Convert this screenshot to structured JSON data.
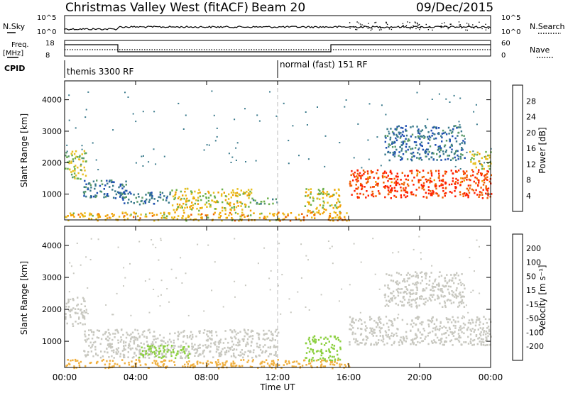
{
  "header": {
    "radar": "Christmas Valley West (fitACF)",
    "beam": "Beam 20",
    "date": "09/Dec/2015"
  },
  "noise_panel": {
    "left_label": "N.Sky",
    "right_label": "N.Search",
    "left_ticks": [
      "10^5",
      "10^0"
    ],
    "right_ticks": [
      "10^5",
      "10^0"
    ],
    "scale": "log"
  },
  "freq_panel": {
    "left_label_1": "Freq.",
    "left_label_2": "[MHz]",
    "right_label": "Nave",
    "left_ticks": [
      "18",
      "8"
    ],
    "right_ticks": [
      "60",
      "0"
    ]
  },
  "cpid": {
    "label": "CPID",
    "segments": [
      {
        "name": "themis 3300 RF",
        "start_hour": 0,
        "end_hour": 12
      },
      {
        "name": "normal (fast) 151 RF",
        "start_hour": 12,
        "end_hour": 24
      }
    ]
  },
  "chart_data": [
    {
      "type": "heatmap",
      "name": "power",
      "ylabel": "Slant Range [km]",
      "xlabel": "Time UT",
      "ylim": [
        180,
        4600
      ],
      "xlim": [
        0,
        24
      ],
      "yticks": [
        "1000",
        "2000",
        "3000",
        "4000"
      ],
      "xticks": [
        "00:00",
        "04:00",
        "08:00",
        "12:00",
        "16:00",
        "20:00",
        "00:00"
      ],
      "colorbar": {
        "label": "Power [dB]",
        "ticks": [
          "28",
          "24",
          "20",
          "16",
          "12",
          "8",
          "4"
        ],
        "range": [
          0,
          30
        ],
        "colors": [
          "#0000ff",
          "#2050b0",
          "#3a7a8c",
          "#5a9a6a",
          "#6cb04a",
          "#e8c020",
          "#f0a000",
          "#f06000",
          "#ff2000"
        ]
      },
      "regions": [
        {
          "t0": 0.0,
          "t1": 1.2,
          "r0": 1500,
          "r1": 2400,
          "level": 16
        },
        {
          "t0": 1.0,
          "t1": 3.5,
          "r0": 900,
          "r1": 1500,
          "level": 8
        },
        {
          "t0": 3.0,
          "t1": 6.0,
          "r0": 700,
          "r1": 1100,
          "level": 8
        },
        {
          "t0": 6.0,
          "t1": 10.5,
          "r0": 500,
          "r1": 1200,
          "level": 18
        },
        {
          "t0": 10.5,
          "t1": 12.0,
          "r0": 700,
          "r1": 900,
          "level": 12
        },
        {
          "t0": 0.0,
          "t1": 12.0,
          "r0": 180,
          "r1": 450,
          "level": 20
        },
        {
          "t0": 13.5,
          "t1": 15.5,
          "r0": 400,
          "r1": 1200,
          "level": 18
        },
        {
          "t0": 16.0,
          "t1": 24.0,
          "r0": 900,
          "r1": 1800,
          "level": 27
        },
        {
          "t0": 22.8,
          "t1": 24.0,
          "r0": 1800,
          "r1": 2400,
          "level": 18
        },
        {
          "t0": 18.0,
          "t1": 22.5,
          "r0": 2100,
          "r1": 3200,
          "level": 8
        },
        {
          "t0": 12.0,
          "t1": 16.0,
          "r0": 180,
          "r1": 450,
          "level": 22
        }
      ]
    },
    {
      "type": "heatmap",
      "name": "velocity",
      "ylabel": "Slant Range [km]",
      "xlabel": "Time UT",
      "ylim": [
        180,
        4600
      ],
      "xlim": [
        0,
        24
      ],
      "yticks": [
        "1000",
        "2000",
        "3000",
        "4000"
      ],
      "xticks": [
        "00:00",
        "04:00",
        "08:00",
        "12:00",
        "16:00",
        "20:00",
        "00:00"
      ],
      "colorbar": {
        "label": "Velocity [m s⁻¹]",
        "ticks": [
          "200",
          "100",
          "50",
          "15",
          "-15",
          "-50",
          "-100",
          "-200"
        ],
        "colors": [
          "#1a3aa0",
          "#2a6a80",
          "#3a9a40",
          "#8cd040",
          "#c8c8c0",
          "#f0b040",
          "#f08020",
          "#f04010",
          "#e00000"
        ]
      },
      "regions": [
        {
          "t0": 0.0,
          "t1": 1.2,
          "r0": 1500,
          "r1": 2400,
          "level": 0
        },
        {
          "t0": 1.0,
          "t1": 12.0,
          "r0": 500,
          "r1": 1400,
          "level": 0
        },
        {
          "t0": 0.0,
          "t1": 12.0,
          "r0": 180,
          "r1": 450,
          "level": -40
        },
        {
          "t0": 4.0,
          "t1": 7.0,
          "r0": 500,
          "r1": 900,
          "level": 40
        },
        {
          "t0": 13.5,
          "t1": 15.5,
          "r0": 400,
          "r1": 1200,
          "level": 30
        },
        {
          "t0": 16.0,
          "t1": 24.0,
          "r0": 900,
          "r1": 1800,
          "level": 0
        },
        {
          "t0": 12.0,
          "t1": 16.0,
          "r0": 180,
          "r1": 450,
          "level": -40
        },
        {
          "t0": 18.0,
          "t1": 22.5,
          "r0": 2100,
          "r1": 3200,
          "level": 0
        }
      ]
    }
  ]
}
